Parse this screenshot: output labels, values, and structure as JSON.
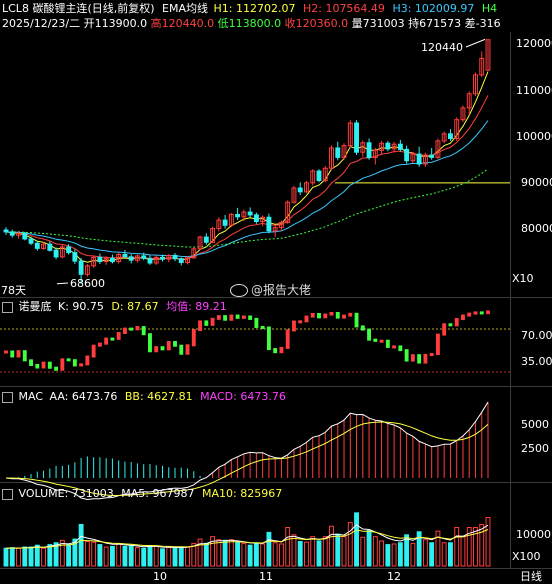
{
  "header": {
    "symbol": "LCL8",
    "name": "碳酸锂主连",
    "mode": "(日线,前复权)",
    "ema_label": "EMA均线",
    "h1": "H1: 112702.07",
    "h2": "H2: 107564.49",
    "h3": "H3: 102009.97",
    "h4": "H4",
    "date": "2025/12/23/二",
    "open": "开113900.0",
    "high": "高120440.0",
    "low": "低113800.0",
    "close": "收120360.0",
    "volume": "量731003",
    "oi": "持671573",
    "diff": "差-316"
  },
  "main": {
    "high_label": "120440",
    "low_label": "68600",
    "days_label": "78天",
    "zoom_label": "X10",
    "y_ticks": [
      "120000",
      "110000",
      "100000",
      "90000",
      "80000"
    ],
    "watermark": "@报告大佬"
  },
  "kd_panel": {
    "name": "诺曼底",
    "k": "K: 90.75",
    "d": "D: 87.67",
    "avg": "均值: 89.21",
    "y_ticks": [
      "70.00",
      "35.00"
    ]
  },
  "macd_panel": {
    "name": "MAC",
    "aa": "AA: 6473.76",
    "bb": "BB: 4627.81",
    "macd": "MACD: 6473.76",
    "y_ticks": [
      "5000",
      "2500"
    ]
  },
  "vol_panel": {
    "name": "VOLUME: 731003",
    "ma5": "MA5: 967987",
    "ma10": "MA10: 825967",
    "y_ticks": [
      "10000",
      "X100"
    ]
  },
  "x_axis": {
    "labels": [
      "10",
      "11",
      "12"
    ],
    "period": "日线"
  },
  "colors": {
    "up": "#ff3d3d",
    "down": "#2ff0f0",
    "h1": "#ffff40",
    "h2": "#ff4040",
    "h3": "#3ac8ff",
    "green": "#40ff40",
    "magenta": "#ff40ff"
  },
  "chart_data": {
    "type": "candlestick",
    "price_range": [
      66000,
      122000
    ],
    "ohlc": [
      [
        80000,
        80600,
        79000,
        79600
      ],
      [
        79600,
        80100,
        78400,
        78900
      ],
      [
        78900,
        79800,
        78200,
        79300
      ],
      [
        79300,
        79600,
        77800,
        78100
      ],
      [
        78100,
        78600,
        76800,
        77200
      ],
      [
        77200,
        77700,
        75600,
        76100
      ],
      [
        76100,
        77400,
        75800,
        77000
      ],
      [
        77000,
        77600,
        75400,
        75700
      ],
      [
        75700,
        76300,
        73800,
        74300
      ],
      [
        74300,
        76900,
        74000,
        76400
      ],
      [
        76400,
        77000,
        74800,
        75200
      ],
      [
        75200,
        75900,
        72800,
        73400
      ],
      [
        73400,
        74100,
        68600,
        70600
      ],
      [
        70600,
        72800,
        70100,
        72400
      ],
      [
        72400,
        74600,
        72000,
        74200
      ],
      [
        74200,
        75000,
        72800,
        73300
      ],
      [
        73300,
        74400,
        72600,
        74000
      ],
      [
        74000,
        74800,
        72900,
        73300
      ],
      [
        73300,
        75200,
        72900,
        74800
      ],
      [
        74800,
        75800,
        73900,
        74300
      ],
      [
        74300,
        74900,
        72900,
        73600
      ],
      [
        73600,
        74800,
        73100,
        74500
      ],
      [
        74500,
        75200,
        73600,
        74000
      ],
      [
        74000,
        74600,
        72600,
        73000
      ],
      [
        73000,
        74600,
        72600,
        74200
      ],
      [
        74200,
        74800,
        73300,
        73800
      ],
      [
        73800,
        74900,
        73200,
        74600
      ],
      [
        74600,
        75100,
        73400,
        73900
      ],
      [
        73900,
        74200,
        72500,
        73100
      ],
      [
        73100,
        74500,
        72700,
        74100
      ],
      [
        74100,
        76300,
        73900,
        76000
      ],
      [
        76000,
        78800,
        75700,
        78500
      ],
      [
        78500,
        79300,
        76900,
        77400
      ],
      [
        77400,
        80700,
        77200,
        80300
      ],
      [
        80300,
        82700,
        79700,
        82100
      ],
      [
        82100,
        83200,
        80300,
        81000
      ],
      [
        81000,
        83600,
        80600,
        83300
      ],
      [
        83300,
        84700,
        82100,
        82800
      ],
      [
        82800,
        84300,
        81900,
        83800
      ],
      [
        83800,
        84800,
        82700,
        83200
      ],
      [
        83200,
        83700,
        81300,
        81800
      ],
      [
        81800,
        83100,
        80800,
        82700
      ],
      [
        82700,
        83500,
        79300,
        79800
      ],
      [
        79800,
        81000,
        78500,
        80500
      ],
      [
        80500,
        82000,
        79700,
        81600
      ],
      [
        81600,
        86300,
        81300,
        85900
      ],
      [
        85900,
        89400,
        85600,
        88900
      ],
      [
        88900,
        90100,
        87400,
        88100
      ],
      [
        88100,
        90400,
        87800,
        90000
      ],
      [
        90000,
        92900,
        89400,
        92500
      ],
      [
        92500,
        92900,
        90100,
        90500
      ],
      [
        90500,
        93600,
        90100,
        93100
      ],
      [
        93100,
        97900,
        92700,
        97400
      ],
      [
        97400,
        98700,
        94800,
        95400
      ],
      [
        95400,
        98400,
        94900,
        97900
      ],
      [
        97900,
        103300,
        97500,
        102700
      ],
      [
        102700,
        103300,
        95900,
        96500
      ],
      [
        96500,
        99000,
        95600,
        98500
      ],
      [
        98500,
        99400,
        94900,
        95400
      ],
      [
        95400,
        97400,
        93900,
        96900
      ],
      [
        96900,
        98900,
        96100,
        98400
      ],
      [
        98400,
        98900,
        96700,
        97200
      ],
      [
        97200,
        98700,
        96400,
        98200
      ],
      [
        98200,
        99100,
        96600,
        97100
      ],
      [
        97100,
        97900,
        94100,
        94700
      ],
      [
        94700,
        96600,
        94200,
        96100
      ],
      [
        96100,
        97700,
        93400,
        94000
      ],
      [
        94000,
        96400,
        93400,
        95900
      ],
      [
        95900,
        97400,
        94900,
        95400
      ],
      [
        95400,
        99400,
        95000,
        98900
      ],
      [
        98900,
        100900,
        98400,
        100400
      ],
      [
        100400,
        101400,
        98900,
        99400
      ],
      [
        99400,
        103900,
        98900,
        103400
      ],
      [
        103400,
        106400,
        102900,
        105900
      ],
      [
        105900,
        109400,
        104400,
        108900
      ],
      [
        108900,
        113400,
        108400,
        112900
      ],
      [
        112900,
        117900,
        112400,
        116400
      ],
      [
        113900,
        120440,
        113800,
        120360
      ]
    ]
  }
}
